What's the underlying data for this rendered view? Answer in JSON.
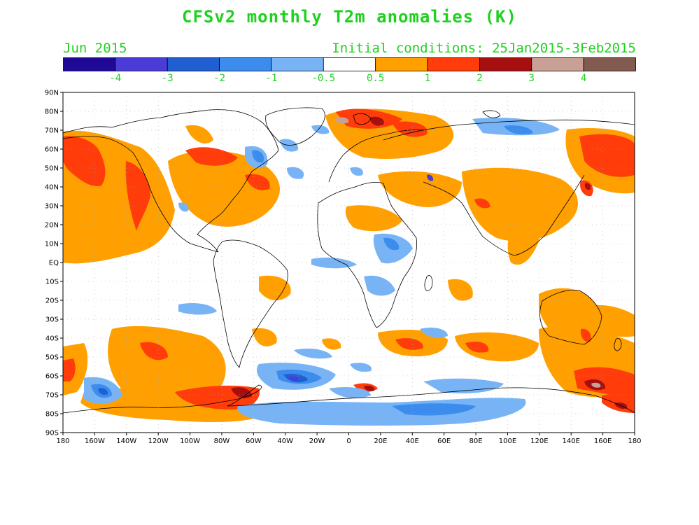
{
  "title": "CFSv2 monthly T2m anomalies (K)",
  "valid_month": "Jun 2015",
  "initial_conditions": "Initial conditions: 25Jan2015-3Feb2015",
  "colorbar": {
    "colors": [
      "#1e0a96",
      "#4b3cd7",
      "#1f5fd1",
      "#3c8cee",
      "#78b4f5",
      "#ffffff",
      "#ffa000",
      "#ff3c0a",
      "#a50f0f",
      "#c8a096",
      "#825a50"
    ],
    "tick_labels": [
      "-4",
      "-3",
      "-2",
      "-1",
      "-0.5",
      "0.5",
      "1",
      "2",
      "3",
      "4"
    ]
  },
  "map": {
    "lat_labels": [
      "90N",
      "80N",
      "70N",
      "60N",
      "50N",
      "40N",
      "30N",
      "20N",
      "10N",
      "EQ",
      "10S",
      "20S",
      "30S",
      "40S",
      "50S",
      "60S",
      "70S",
      "80S",
      "90S"
    ],
    "lon_labels": [
      "180",
      "160W",
      "140W",
      "120W",
      "100W",
      "80W",
      "60W",
      "40W",
      "20W",
      "0",
      "20E",
      "40E",
      "60E",
      "80E",
      "100E",
      "120E",
      "140E",
      "160E",
      "180"
    ],
    "palette": {
      "warm1": "#ffa000",
      "warm2": "#ff3c0a",
      "warm3": "#a50f0f",
      "warm4": "#c8a096",
      "cool1": "#78b4f5",
      "cool2": "#3c8cee",
      "cool3": "#1f5fd1",
      "cool4": "#4b3cd7"
    }
  }
}
